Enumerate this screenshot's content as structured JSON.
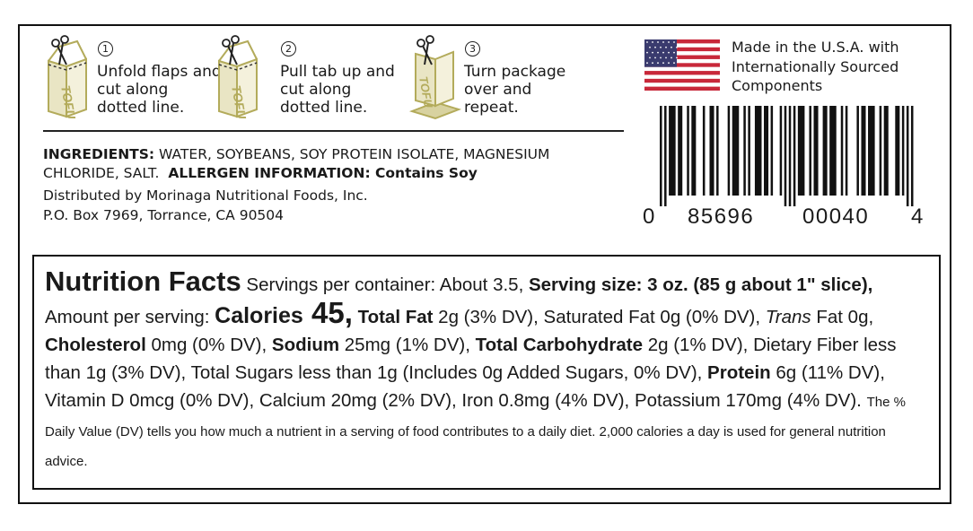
{
  "steps": [
    {
      "number": "1",
      "text": "Unfold flaps and cut along dotted line."
    },
    {
      "number": "2",
      "text": "Pull tab up and cut along dotted line."
    },
    {
      "number": "3",
      "text": "Turn package over and repeat."
    }
  ],
  "carton_label": "TOFU",
  "origin": "Made in the U.S.A. with Internationally Sourced Components",
  "barcode_digits": [
    "0",
    "85696",
    "00040",
    "4"
  ],
  "ingredients": {
    "label": "INGREDIENTS:",
    "text": " WATER, SOYBEANS, SOY PROTEIN ISOLATE, MAGNESIUM CHLORIDE, SALT.",
    "allergen": "ALLERGEN INFORMATION: Contains Soy"
  },
  "distributor": [
    "Distributed by Morinaga Nutritional Foods, Inc.",
    "P.O. Box 7969, Torrance, CA 90504"
  ],
  "nutrition_runs": [
    {
      "text": "Nutrition Facts",
      "style": "title"
    },
    {
      "text": " Servings per container: About 3.5, ",
      "style": "normal"
    },
    {
      "text": "Serving size: 3 oz. (85 g about 1\" slice),",
      "style": "bold"
    },
    {
      "text": " Amount per serving: ",
      "style": "normal"
    },
    {
      "text": "Calories",
      "style": "calories"
    },
    {
      "text": " 45,",
      "style": "calvalue"
    },
    {
      "text": " ",
      "style": "normal"
    },
    {
      "text": "Total Fat",
      "style": "bold"
    },
    {
      "text": " 2g (3% DV), Saturated Fat 0g (0% DV), ",
      "style": "normal"
    },
    {
      "text": "Trans",
      "style": "italic"
    },
    {
      "text": " Fat 0g, ",
      "style": "normal"
    },
    {
      "text": "Cholesterol",
      "style": "bold"
    },
    {
      "text": " 0mg (0% DV), ",
      "style": "normal"
    },
    {
      "text": "Sodium",
      "style": "bold"
    },
    {
      "text": " 25mg (1% DV), ",
      "style": "normal"
    },
    {
      "text": "Total Carbohydrate",
      "style": "bold"
    },
    {
      "text": " 2g (1% DV), Dietary Fiber less than 1g (3% DV), Total Sugars less than 1g (Includes 0g Added Sugars, 0% DV), ",
      "style": "normal"
    },
    {
      "text": "Protein",
      "style": "bold"
    },
    {
      "text": " 6g (11% DV), Vitamin D 0mcg (0% DV), Calcium 20mg (2% DV), Iron 0.8mg (4% DV), Potassium 170mg (4% DV). ",
      "style": "normal"
    },
    {
      "text": "The % Daily Value (DV) tells you how much a nutrient in a serving of food contributes to a daily diet. 2,000 calories a day is used for general nutrition advice.",
      "style": "small"
    }
  ]
}
